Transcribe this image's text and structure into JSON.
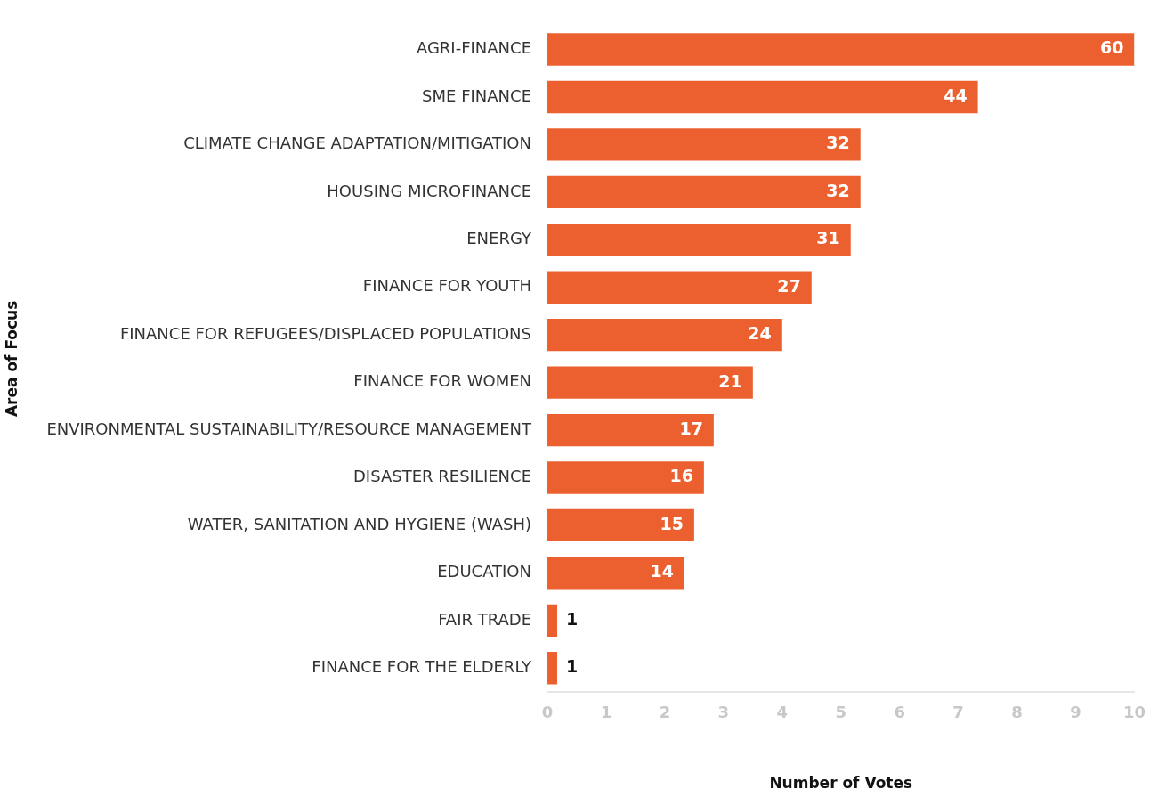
{
  "chart_data": {
    "type": "bar",
    "orientation": "horizontal",
    "xlabel": "Number of Votes",
    "ylabel": "Area of Focus",
    "categories": [
      "AGRI-FINANCE",
      "SME FINANCE",
      "CLIMATE CHANGE ADAPTATION/MITIGATION",
      "HOUSING MICROFINANCE",
      "ENERGY",
      "FINANCE FOR YOUTH",
      "FINANCE FOR REFUGEES/DISPLACED POPULATIONS",
      "FINANCE FOR WOMEN",
      "ENVIRONMENTAL SUSTAINABILITY/RESOURCE MANAGEMENT",
      "DISASTER RESILIENCE",
      "WATER, SANITATION AND HYGIENE (WASH)",
      "EDUCATION",
      "FAIR TRADE",
      "FINANCE FOR THE ELDERLY"
    ],
    "values": [
      60,
      44,
      32,
      32,
      31,
      27,
      24,
      21,
      17,
      16,
      15,
      14,
      1,
      1
    ],
    "color": "#eb602e",
    "data_labels": true,
    "grid": false,
    "legend": false,
    "xlim": [
      0,
      60
    ],
    "x2lim": [
      0,
      10
    ],
    "x2ticks": [
      0,
      1,
      2,
      3,
      4,
      5,
      6,
      7,
      8,
      9,
      10
    ]
  }
}
